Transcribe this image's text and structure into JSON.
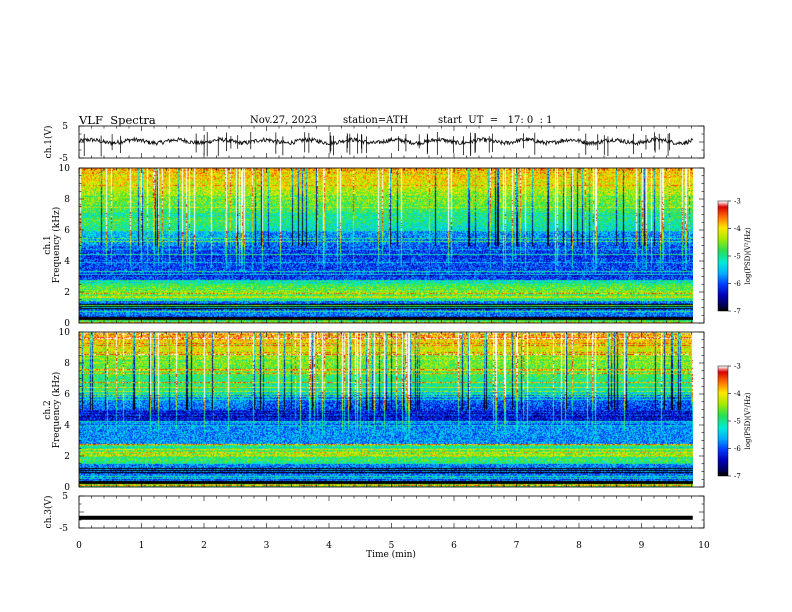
{
  "header": {
    "title": "VLF  Spectra",
    "date": "Nov.27, 2023",
    "station": "station=ATH",
    "start": "start  UT  =   17: 0  : 1"
  },
  "panels": {
    "ch1_wave_label": "ch.1(V)",
    "ch3_wave_label": "ch.3(V)",
    "ch1_spec_label": "ch.1",
    "ch2_spec_label": "ch.2",
    "freq_label": "Frequency  (kHz)",
    "time_label": "Time  (min)",
    "colorbar_label": "log(PSD)(V²/Hz)"
  },
  "colors": {
    "axis": "#000000",
    "trace": "#111111",
    "background": "#ffffff"
  },
  "chart_data": [
    {
      "type": "line",
      "name": "ch1-waveform",
      "ylabel": "ch.1(V)",
      "ylim": [
        -5,
        5
      ],
      "yticks": [
        "5",
        "-5"
      ],
      "x_range_min": [
        0,
        9.82
      ],
      "y_level_approx": 0.2
    },
    {
      "type": "heatmap",
      "name": "ch1-spectrogram",
      "ylabel": "Frequency  (kHz)",
      "channel": "ch.1",
      "ylim": [
        0,
        10
      ],
      "yticks": [
        "0",
        "2",
        "4",
        "6",
        "8",
        "10"
      ],
      "x_range_min": [
        0,
        9.82
      ],
      "colorbar": {
        "label": "log(PSD)(V²/Hz)",
        "range": [
          -7,
          -3
        ],
        "ticks": [
          "-3",
          "-4",
          "-5",
          "-6",
          "-7"
        ]
      }
    },
    {
      "type": "heatmap",
      "name": "ch2-spectrogram",
      "ylabel": "Frequency  (kHz)",
      "channel": "ch.2",
      "ylim": [
        0,
        10
      ],
      "yticks": [
        "0",
        "2",
        "4",
        "6",
        "8",
        "10"
      ],
      "x_range_min": [
        0,
        9.82
      ],
      "colorbar": {
        "label": "log(PSD)(V²/Hz)",
        "range": [
          -7,
          -3
        ],
        "ticks": [
          "-3",
          "-4",
          "-5",
          "-6",
          "-7"
        ]
      }
    },
    {
      "type": "line",
      "name": "ch3-waveform",
      "ylabel": "ch.3(V)",
      "ylim": [
        -5,
        5
      ],
      "yticks": [
        "5",
        "-5"
      ],
      "x_range_min": [
        0,
        9.82
      ],
      "y_level_approx": -1.8
    }
  ],
  "x_axis": {
    "label": "Time  (min)",
    "min": 0,
    "max": 10,
    "ticks": [
      "0",
      "1",
      "2",
      "3",
      "4",
      "5",
      "6",
      "7",
      "8",
      "9",
      "10"
    ]
  }
}
